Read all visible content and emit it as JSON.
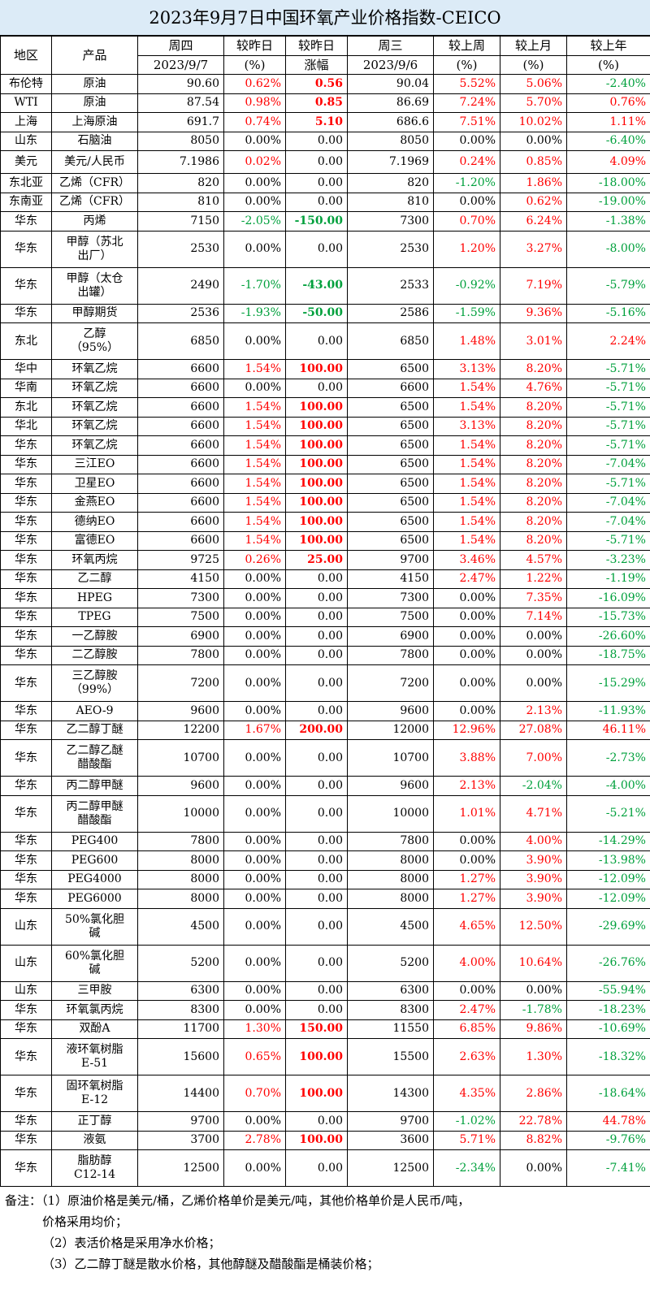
{
  "title": "2023年9月7日中国环氧产业价格指数-CEICO",
  "header": {
    "region": "地区",
    "product": "产品",
    "thu_day": "周四",
    "thu_date": "2023/9/7",
    "chg_pct_1": "较昨日",
    "chg_pct_2": "(%)",
    "chg_abs_1": "较昨日",
    "chg_abs_2": "涨幅",
    "wed_day": "周三",
    "wed_date": "2023/9/6",
    "wk_1": "较上周",
    "wk_2": "(%)",
    "mo_1": "较上月",
    "mo_2": "(%)",
    "yr_1": "较上年",
    "yr_2": "(%)"
  },
  "rows": [
    {
      "region": "布伦特",
      "product": "原油",
      "thu": "90.60",
      "dpct": "0.62%",
      "dabs": "0.56",
      "wed": "90.04",
      "wk": "5.52%",
      "mo": "5.06%",
      "yr": "-2.40%"
    },
    {
      "region": "WTI",
      "product": "原油",
      "thu": "87.54",
      "dpct": "0.98%",
      "dabs": "0.85",
      "wed": "86.69",
      "wk": "7.24%",
      "mo": "5.70%",
      "yr": "0.76%"
    },
    {
      "region": "上海",
      "product": "上海原油",
      "thu": "691.7",
      "dpct": "0.74%",
      "dabs": "5.10",
      "wed": "686.6",
      "wk": "7.51%",
      "mo": "10.02%",
      "yr": "1.11%"
    },
    {
      "region": "山东",
      "product": "石脑油",
      "thu": "8050",
      "dpct": "0.00%",
      "dabs": "0.00",
      "wed": "8050",
      "wk": "0.00%",
      "mo": "0.00%",
      "yr": "-6.40%"
    },
    {
      "region": "美元",
      "product": "美元/人民币",
      "thu": "7.1986",
      "dpct": "0.02%",
      "dabs": "0.00",
      "wed": "7.1969",
      "wk": "0.24%",
      "mo": "0.85%",
      "yr": "4.09%",
      "tall": true
    },
    {
      "region": "东北亚",
      "product": "乙烯（CFR）",
      "thu": "820",
      "dpct": "0.00%",
      "dabs": "0.00",
      "wed": "820",
      "wk": "-1.20%",
      "mo": "1.86%",
      "yr": "-18.00%"
    },
    {
      "region": "东南亚",
      "product": "乙烯（CFR）",
      "thu": "810",
      "dpct": "0.00%",
      "dabs": "0.00",
      "wed": "810",
      "wk": "0.00%",
      "mo": "0.62%",
      "yr": "-19.00%"
    },
    {
      "region": "华东",
      "product": "丙烯",
      "thu": "7150",
      "dpct": "-2.05%",
      "dabs": "-150.00",
      "wed": "7300",
      "wk": "0.70%",
      "mo": "6.24%",
      "yr": "-1.38%"
    },
    {
      "region": "华东",
      "product": "甲醇（苏北出厂）",
      "thu": "2530",
      "dpct": "0.00%",
      "dabs": "0.00",
      "wed": "2530",
      "wk": "1.20%",
      "mo": "3.27%",
      "yr": "-8.00%",
      "lines": [
        "甲醇（苏北",
        "出厂）"
      ]
    },
    {
      "region": "华东",
      "product": "甲醇（太仓出罐）",
      "thu": "2490",
      "dpct": "-1.70%",
      "dabs": "-43.00",
      "wed": "2533",
      "wk": "-0.92%",
      "mo": "7.19%",
      "yr": "-5.79%",
      "lines": [
        "甲醇（太仓",
        "出罐）"
      ]
    },
    {
      "region": "华东",
      "product": "甲醇期货",
      "thu": "2536",
      "dpct": "-1.93%",
      "dabs": "-50.00",
      "wed": "2586",
      "wk": "-1.59%",
      "mo": "9.36%",
      "yr": "-5.16%"
    },
    {
      "region": "东北",
      "product": "乙醇（95%）",
      "thu": "6850",
      "dpct": "0.00%",
      "dabs": "0.00",
      "wed": "6850",
      "wk": "1.48%",
      "mo": "3.01%",
      "yr": "2.24%",
      "lines": [
        "乙醇",
        "（95%）"
      ]
    },
    {
      "region": "华中",
      "product": "环氧乙烷",
      "thu": "6600",
      "dpct": "1.54%",
      "dabs": "100.00",
      "wed": "6500",
      "wk": "3.13%",
      "mo": "8.20%",
      "yr": "-5.71%"
    },
    {
      "region": "华南",
      "product": "环氧乙烷",
      "thu": "6600",
      "dpct": "0.00%",
      "dabs": "0.00",
      "wed": "6600",
      "wk": "1.54%",
      "mo": "4.76%",
      "yr": "-5.71%"
    },
    {
      "region": "东北",
      "product": "环氧乙烷",
      "thu": "6600",
      "dpct": "1.54%",
      "dabs": "100.00",
      "wed": "6500",
      "wk": "1.54%",
      "mo": "8.20%",
      "yr": "-5.71%"
    },
    {
      "region": "华北",
      "product": "环氧乙烷",
      "thu": "6600",
      "dpct": "1.54%",
      "dabs": "100.00",
      "wed": "6500",
      "wk": "3.13%",
      "mo": "8.20%",
      "yr": "-5.71%"
    },
    {
      "region": "华东",
      "product": "环氧乙烷",
      "thu": "6600",
      "dpct": "1.54%",
      "dabs": "100.00",
      "wed": "6500",
      "wk": "1.54%",
      "mo": "8.20%",
      "yr": "-5.71%"
    },
    {
      "region": "华东",
      "product": "三江EO",
      "thu": "6600",
      "dpct": "1.54%",
      "dabs": "100.00",
      "wed": "6500",
      "wk": "1.54%",
      "mo": "8.20%",
      "yr": "-7.04%"
    },
    {
      "region": "华东",
      "product": "卫星EO",
      "thu": "6600",
      "dpct": "1.54%",
      "dabs": "100.00",
      "wed": "6500",
      "wk": "1.54%",
      "mo": "8.20%",
      "yr": "-5.71%"
    },
    {
      "region": "华东",
      "product": "金燕EO",
      "thu": "6600",
      "dpct": "1.54%",
      "dabs": "100.00",
      "wed": "6500",
      "wk": "1.54%",
      "mo": "8.20%",
      "yr": "-7.04%"
    },
    {
      "region": "华东",
      "product": "德纳EO",
      "thu": "6600",
      "dpct": "1.54%",
      "dabs": "100.00",
      "wed": "6500",
      "wk": "1.54%",
      "mo": "8.20%",
      "yr": "-7.04%"
    },
    {
      "region": "华东",
      "product": "富德EO",
      "thu": "6600",
      "dpct": "1.54%",
      "dabs": "100.00",
      "wed": "6500",
      "wk": "1.54%",
      "mo": "8.20%",
      "yr": "-5.71%"
    },
    {
      "region": "华东",
      "product": "环氧丙烷",
      "thu": "9725",
      "dpct": "0.26%",
      "dabs": "25.00",
      "wed": "9700",
      "wk": "3.46%",
      "mo": "4.57%",
      "yr": "-3.23%"
    },
    {
      "region": "华东",
      "product": "乙二醇",
      "thu": "4150",
      "dpct": "0.00%",
      "dabs": "0.00",
      "wed": "4150",
      "wk": "2.47%",
      "mo": "1.22%",
      "yr": "-1.19%"
    },
    {
      "region": "华东",
      "product": "HPEG",
      "thu": "7300",
      "dpct": "0.00%",
      "dabs": "0.00",
      "wed": "7300",
      "wk": "0.00%",
      "mo": "7.35%",
      "yr": "-16.09%"
    },
    {
      "region": "华东",
      "product": "TPEG",
      "thu": "7500",
      "dpct": "0.00%",
      "dabs": "0.00",
      "wed": "7500",
      "wk": "0.00%",
      "mo": "7.14%",
      "yr": "-15.73%"
    },
    {
      "region": "华东",
      "product": "一乙醇胺",
      "thu": "6900",
      "dpct": "0.00%",
      "dabs": "0.00",
      "wed": "6900",
      "wk": "0.00%",
      "mo": "0.00%",
      "yr": "-26.60%"
    },
    {
      "region": "华东",
      "product": "二乙醇胺",
      "thu": "7800",
      "dpct": "0.00%",
      "dabs": "0.00",
      "wed": "7800",
      "wk": "0.00%",
      "mo": "0.00%",
      "yr": "-18.75%"
    },
    {
      "region": "华东",
      "product": "三乙醇胺（99%）",
      "thu": "7200",
      "dpct": "0.00%",
      "dabs": "0.00",
      "wed": "7200",
      "wk": "0.00%",
      "mo": "0.00%",
      "yr": "-15.29%",
      "lines": [
        "三乙醇胺",
        "（99%）"
      ]
    },
    {
      "region": "华东",
      "product": "AEO-9",
      "thu": "9600",
      "dpct": "0.00%",
      "dabs": "0.00",
      "wed": "9600",
      "wk": "0.00%",
      "mo": "2.13%",
      "yr": "-11.93%"
    },
    {
      "region": "华东",
      "product": "乙二醇丁醚",
      "thu": "12200",
      "dpct": "1.67%",
      "dabs": "200.00",
      "wed": "12000",
      "wk": "12.96%",
      "mo": "27.08%",
      "yr": "46.11%"
    },
    {
      "region": "华东",
      "product": "乙二醇乙醚醋酸酯",
      "thu": "10700",
      "dpct": "0.00%",
      "dabs": "0.00",
      "wed": "10700",
      "wk": "3.88%",
      "mo": "7.00%",
      "yr": "-2.73%",
      "lines": [
        "乙二醇乙醚",
        "醋酸酯"
      ]
    },
    {
      "region": "华东",
      "product": "丙二醇甲醚",
      "thu": "9600",
      "dpct": "0.00%",
      "dabs": "0.00",
      "wed": "9600",
      "wk": "2.13%",
      "mo": "-2.04%",
      "yr": "-4.00%"
    },
    {
      "region": "华东",
      "product": "丙二醇甲醚醋酸酯",
      "thu": "10000",
      "dpct": "0.00%",
      "dabs": "0.00",
      "wed": "10000",
      "wk": "1.01%",
      "mo": "4.71%",
      "yr": "-5.21%",
      "lines": [
        "丙二醇甲醚",
        "醋酸酯"
      ]
    },
    {
      "region": "华东",
      "product": "PEG400",
      "thu": "7800",
      "dpct": "0.00%",
      "dabs": "0.00",
      "wed": "7800",
      "wk": "0.00%",
      "mo": "4.00%",
      "yr": "-14.29%"
    },
    {
      "region": "华东",
      "product": "PEG600",
      "thu": "8000",
      "dpct": "0.00%",
      "dabs": "0.00",
      "wed": "8000",
      "wk": "0.00%",
      "mo": "3.90%",
      "yr": "-13.98%"
    },
    {
      "region": "华东",
      "product": "PEG4000",
      "thu": "8000",
      "dpct": "0.00%",
      "dabs": "0.00",
      "wed": "8000",
      "wk": "1.27%",
      "mo": "3.90%",
      "yr": "-12.09%"
    },
    {
      "region": "华东",
      "product": "PEG6000",
      "thu": "8000",
      "dpct": "0.00%",
      "dabs": "0.00",
      "wed": "8000",
      "wk": "1.27%",
      "mo": "3.90%",
      "yr": "-12.09%"
    },
    {
      "region": "山东",
      "product": "50%氯化胆碱",
      "thu": "4500",
      "dpct": "0.00%",
      "dabs": "0.00",
      "wed": "4500",
      "wk": "4.65%",
      "mo": "12.50%",
      "yr": "-29.69%",
      "lines": [
        "50%氯化胆",
        "碱"
      ]
    },
    {
      "region": "山东",
      "product": "60%氯化胆碱",
      "thu": "5200",
      "dpct": "0.00%",
      "dabs": "0.00",
      "wed": "5200",
      "wk": "4.00%",
      "mo": "10.64%",
      "yr": "-26.76%",
      "lines": [
        "60%氯化胆",
        "碱"
      ]
    },
    {
      "region": "山东",
      "product": "三甲胺",
      "thu": "6300",
      "dpct": "0.00%",
      "dabs": "0.00",
      "wed": "6300",
      "wk": "0.00%",
      "mo": "0.00%",
      "yr": "-55.94%"
    },
    {
      "region": "华东",
      "product": "环氧氯丙烷",
      "thu": "8300",
      "dpct": "0.00%",
      "dabs": "0.00",
      "wed": "8300",
      "wk": "2.47%",
      "mo": "-1.78%",
      "yr": "-18.23%"
    },
    {
      "region": "华东",
      "product": "双酚A",
      "thu": "11700",
      "dpct": "1.30%",
      "dabs": "150.00",
      "wed": "11550",
      "wk": "6.85%",
      "mo": "9.86%",
      "yr": "-10.69%"
    },
    {
      "region": "华东",
      "product": "液环氧树脂E-51",
      "thu": "15600",
      "dpct": "0.65%",
      "dabs": "100.00",
      "wed": "15500",
      "wk": "2.63%",
      "mo": "1.30%",
      "yr": "-18.32%",
      "lines": [
        "液环氧树脂",
        "E-51"
      ]
    },
    {
      "region": "华东",
      "product": "固环氧树脂E-12",
      "thu": "14400",
      "dpct": "0.70%",
      "dabs": "100.00",
      "wed": "14300",
      "wk": "4.35%",
      "mo": "2.86%",
      "yr": "-18.64%",
      "lines": [
        "固环氧树脂",
        "E-12"
      ]
    },
    {
      "region": "华东",
      "product": "正丁醇",
      "thu": "9700",
      "dpct": "0.00%",
      "dabs": "0.00",
      "wed": "9700",
      "wk": "-1.02%",
      "mo": "22.78%",
      "yr": "44.78%"
    },
    {
      "region": "华东",
      "product": "液氨",
      "thu": "3700",
      "dpct": "2.78%",
      "dabs": "100.00",
      "wed": "3600",
      "wk": "5.71%",
      "mo": "8.82%",
      "yr": "-9.76%"
    },
    {
      "region": "华东",
      "product": "脂肪醇C12-14",
      "thu": "12500",
      "dpct": "0.00%",
      "dabs": "0.00",
      "wed": "12500",
      "wk": "-2.34%",
      "mo": "0.00%",
      "yr": "-7.41%",
      "lines": [
        "脂肪醇",
        "C12-14"
      ]
    }
  ],
  "notes": [
    "备注：（1）原油价格是美元/桶，乙烯价格单价是美元/吨，其他价格单价是人民币/吨，",
    "价格采用均价；",
    "（2）表活价格是采用净水价格；",
    "（3）乙二醇丁醚是散水价格，其他醇醚及醋酸酯是桶装价格；"
  ],
  "colors": {
    "up": "#ff0000",
    "down": "#00a03c",
    "title_bg": "#dcebf7"
  }
}
